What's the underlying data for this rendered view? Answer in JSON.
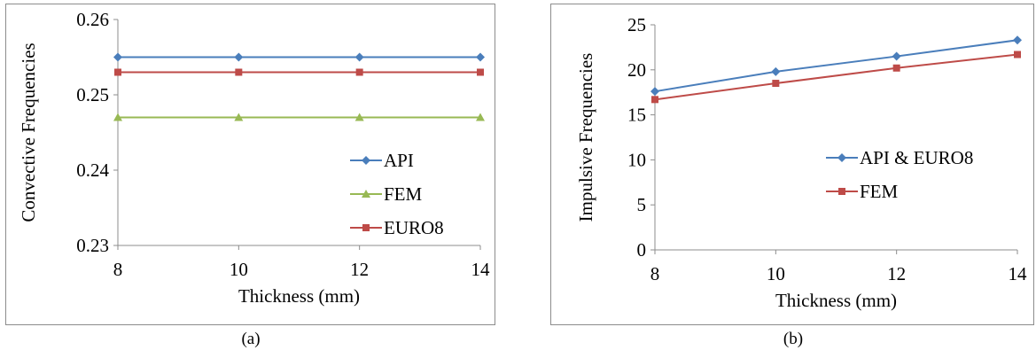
{
  "captions": {
    "a": "(a)",
    "b": "(b)"
  },
  "chart_data": [
    {
      "id": "a",
      "type": "line",
      "xlabel": "Thickness (mm)",
      "ylabel": "Convective Frequencies",
      "x": [
        8,
        10,
        12,
        14
      ],
      "ylim": [
        0.23,
        0.26
      ],
      "yticks": [
        0.23,
        0.24,
        0.25,
        0.26
      ],
      "ytick_labels": [
        "0.23",
        "0.24",
        "0.25",
        "0.26"
      ],
      "xtick_labels": [
        "8",
        "10",
        "12",
        "14"
      ],
      "grid": false,
      "legend": "right",
      "series": [
        {
          "name": "API",
          "values": [
            0.255,
            0.255,
            0.255,
            0.255
          ],
          "color": "#4a7ebb",
          "marker": "diamond"
        },
        {
          "name": "FEM",
          "values": [
            0.247,
            0.247,
            0.247,
            0.247
          ],
          "color": "#98b954",
          "marker": "triangle"
        },
        {
          "name": "EURO8",
          "values": [
            0.253,
            0.253,
            0.253,
            0.253
          ],
          "color": "#be4b48",
          "marker": "square"
        }
      ]
    },
    {
      "id": "b",
      "type": "line",
      "xlabel": "Thickness (mm)",
      "ylabel": "Impulsive Frequencies",
      "x": [
        8,
        10,
        12,
        14
      ],
      "ylim": [
        0,
        25
      ],
      "yticks": [
        0,
        5,
        10,
        15,
        20,
        25
      ],
      "ytick_labels": [
        "0",
        "5",
        "10",
        "15",
        "20",
        "25"
      ],
      "xtick_labels": [
        "8",
        "10",
        "12",
        "14"
      ],
      "grid": false,
      "legend": "right",
      "series": [
        {
          "name": "API & EURO8",
          "values": [
            17.6,
            19.8,
            21.5,
            23.3
          ],
          "color": "#4a7ebb",
          "marker": "diamond"
        },
        {
          "name": "FEM",
          "values": [
            16.7,
            18.5,
            20.2,
            21.7
          ],
          "color": "#be4b48",
          "marker": "square"
        }
      ]
    }
  ]
}
